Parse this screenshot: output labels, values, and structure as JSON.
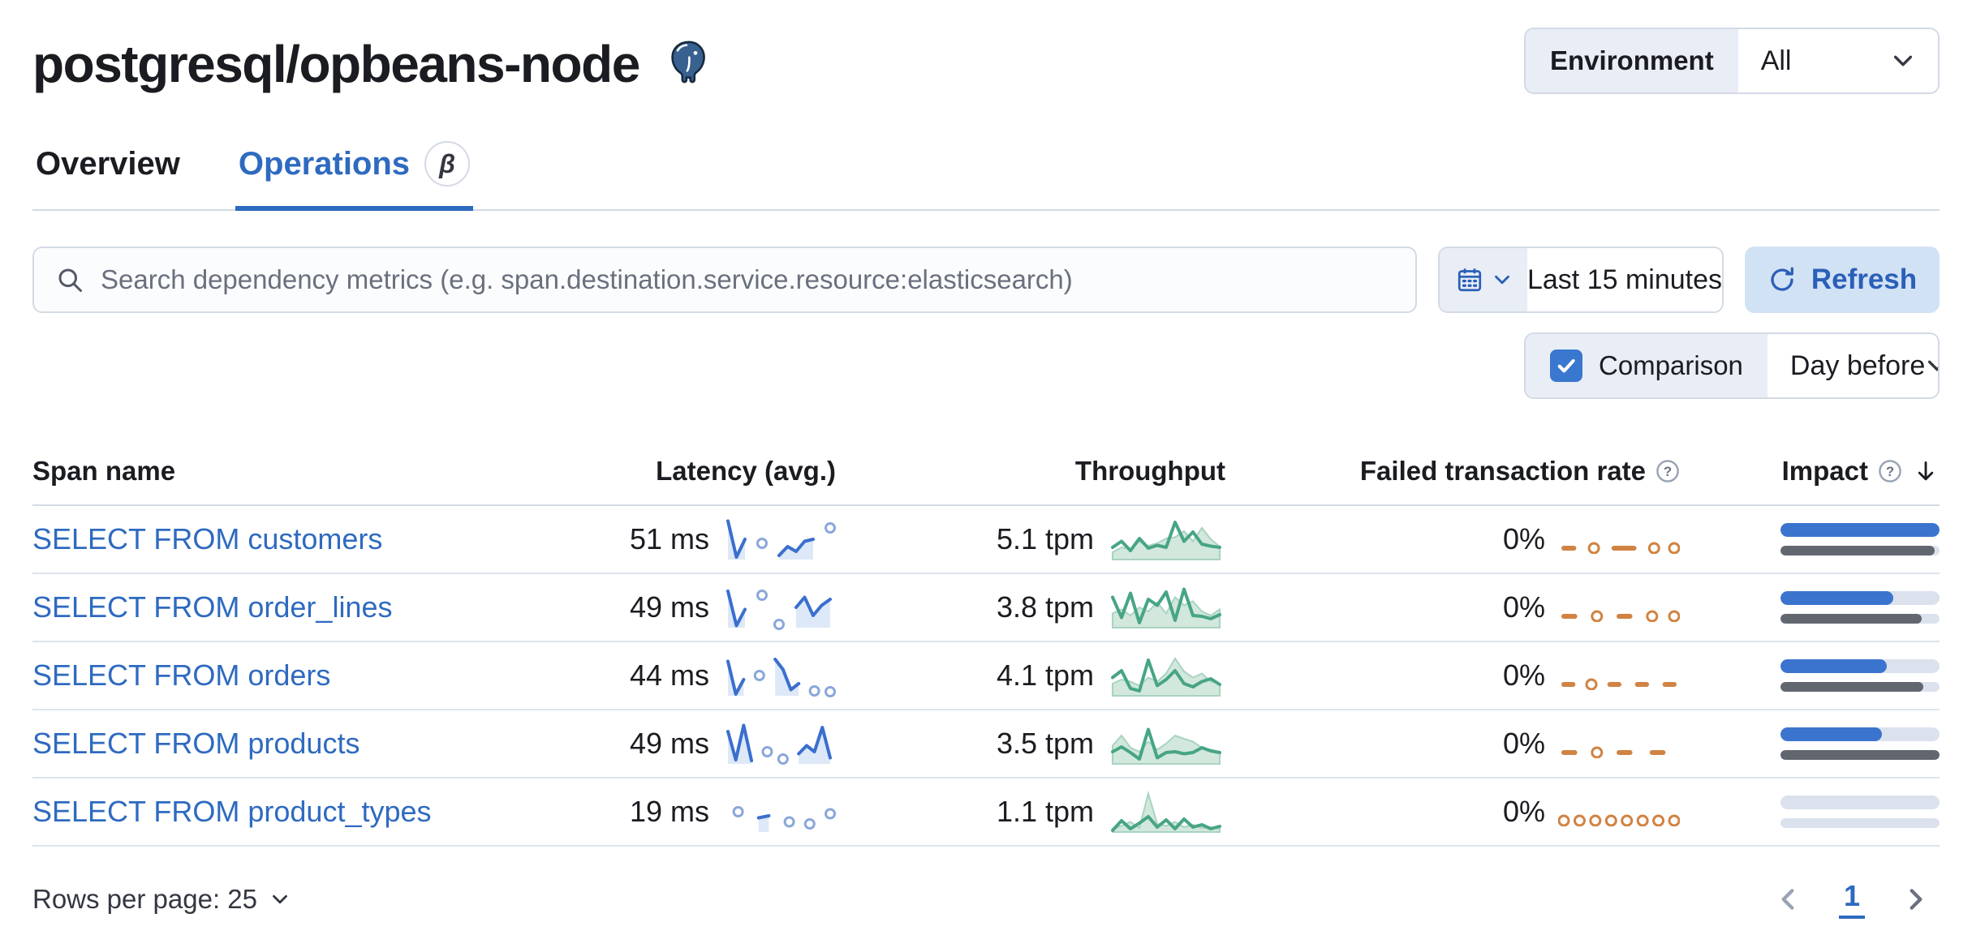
{
  "page": {
    "title": "postgresql/opbeans-node"
  },
  "environment": {
    "label": "Environment",
    "value": "All"
  },
  "tabs": [
    {
      "label": "Overview",
      "active": false
    },
    {
      "label": "Operations",
      "active": true,
      "beta": "β"
    }
  ],
  "toolbar": {
    "search_placeholder": "Search dependency metrics (e.g. span.destination.service.resource:elasticsearch)",
    "time_range": "Last 15 minutes",
    "refresh_label": "Refresh"
  },
  "comparison": {
    "label": "Comparison",
    "checked": true,
    "value": "Day before"
  },
  "table": {
    "columns": [
      "Span name",
      "Latency (avg.)",
      "Throughput",
      "Failed transaction rate",
      "Impact"
    ],
    "rows": [
      {
        "name": "SELECT FROM customers",
        "latency": "51 ms",
        "throughput": "5.1 tpm",
        "failed_rate": "0%",
        "impact_pct": 100,
        "impact_prev_pct": 97,
        "latency_spark": [
          0.95,
          0.06,
          0.5,
          null,
          0.4,
          null,
          0.1,
          0.32,
          0.2,
          0.45,
          0.5,
          null,
          0.78
        ],
        "throughput_spark": [
          0.3,
          0.45,
          0.22,
          0.52,
          0.28,
          0.35,
          0.3,
          0.92,
          0.45,
          0.68,
          0.38,
          0.33,
          0.3
        ],
        "throughput_prev_spark": [
          0.18,
          0.3,
          0.26,
          0.44,
          0.34,
          0.4,
          0.52,
          0.55,
          0.7,
          0.45,
          0.78,
          0.5,
          0.32
        ],
        "failed_spark": [
          0,
          0,
          null,
          0,
          null,
          0,
          0,
          0,
          null,
          0,
          null,
          0
        ]
      },
      {
        "name": "SELECT FROM order_lines",
        "latency": "49 ms",
        "throughput": "3.8 tpm",
        "failed_rate": "0%",
        "impact_pct": 71,
        "impact_prev_pct": 89,
        "latency_spark": [
          0.9,
          0.05,
          0.45,
          null,
          0.8,
          null,
          0.08,
          null,
          0.5,
          0.75,
          0.3,
          0.55,
          0.7
        ],
        "throughput_spark": [
          0.75,
          0.25,
          0.85,
          0.12,
          0.7,
          0.55,
          0.88,
          0.18,
          0.95,
          0.3,
          0.28,
          0.22,
          0.32
        ],
        "throughput_prev_spark": [
          0.35,
          0.45,
          0.3,
          0.5,
          0.4,
          0.62,
          0.35,
          0.75,
          0.55,
          0.65,
          0.4,
          0.3,
          0.45
        ],
        "failed_spark": [
          0,
          0,
          null,
          0,
          null,
          0,
          0,
          null,
          0,
          null,
          0
        ]
      },
      {
        "name": "SELECT FROM orders",
        "latency": "44 ms",
        "throughput": "4.1 tpm",
        "failed_rate": "0%",
        "impact_pct": 67,
        "impact_prev_pct": 90,
        "latency_spark": [
          0.85,
          0.04,
          0.4,
          null,
          0.5,
          null,
          0.9,
          0.65,
          0.15,
          0.3,
          null,
          0.12,
          null,
          0.1
        ],
        "throughput_spark": [
          0.45,
          0.62,
          0.18,
          0.12,
          0.88,
          0.25,
          0.4,
          0.62,
          0.3,
          0.22,
          0.35,
          0.42,
          0.28
        ],
        "throughput_prev_spark": [
          0.3,
          0.4,
          0.35,
          0.25,
          0.45,
          0.35,
          0.55,
          0.92,
          0.6,
          0.45,
          0.55,
          0.35,
          0.3
        ],
        "failed_spark": [
          0,
          0,
          null,
          0,
          null,
          0,
          0,
          null,
          0,
          0,
          null,
          0,
          0
        ]
      },
      {
        "name": "SELECT FROM products",
        "latency": "49 ms",
        "throughput": "3.5 tpm",
        "failed_rate": "0%",
        "impact_pct": 64,
        "impact_prev_pct": 100,
        "latency_spark": [
          0.8,
          0.1,
          0.95,
          0.08,
          null,
          0.3,
          null,
          0.12,
          null,
          0.25,
          0.45,
          0.3,
          0.9,
          0.15
        ],
        "throughput_spark": [
          0.3,
          0.42,
          0.28,
          0.12,
          0.85,
          0.15,
          0.28,
          0.3,
          0.25,
          0.28,
          0.4,
          0.32,
          0.28
        ],
        "throughput_prev_spark": [
          0.45,
          0.7,
          0.4,
          0.3,
          0.55,
          0.35,
          0.5,
          0.7,
          0.62,
          0.55,
          0.4,
          0.35,
          0.3
        ],
        "failed_spark": [
          0,
          0,
          null,
          0,
          null,
          0,
          0,
          null,
          0,
          0,
          null
        ]
      },
      {
        "name": "SELECT FROM product_types",
        "latency": "19 ms",
        "throughput": "1.1 tpm",
        "failed_rate": "0%",
        "impact_pct": 0,
        "impact_prev_pct": 0,
        "latency_spark": [
          null,
          0.5,
          null,
          0.35,
          0.4,
          null,
          0.25,
          null,
          0.2,
          null,
          0.45
        ],
        "throughput_spark": [
          0.04,
          0.28,
          0.08,
          0.22,
          0.38,
          0.12,
          0.3,
          0.08,
          0.32,
          0.12,
          0.18,
          0.08,
          0.14
        ],
        "throughput_prev_spark": [
          0.08,
          0.15,
          0.25,
          0.1,
          0.95,
          0.2,
          0.15,
          0.25,
          0.12,
          0.18,
          0.1,
          0.12,
          0.08
        ],
        "failed_spark": [
          0,
          null,
          0,
          null,
          0,
          null,
          0,
          null,
          0,
          null,
          0,
          null,
          0,
          null,
          0
        ]
      }
    ]
  },
  "footer": {
    "rows_per_page": "Rows per page: 25",
    "page": "1"
  },
  "colors": {
    "link_blue": "#2e6ac0",
    "spark_blue": "#3a6fce",
    "spark_blue_fill": "#dde8f8",
    "spark_blue_circle": "#8aa7d9",
    "spark_green": "#47a584",
    "spark_green_prev_fill": "#d2e8dc",
    "spark_green_prev_stroke": "#a9d3c2",
    "spark_orange": "#d08343",
    "impact_blue": "#3b74cf",
    "impact_gray": "#62676f",
    "impact_track": "#dbe2ee"
  }
}
